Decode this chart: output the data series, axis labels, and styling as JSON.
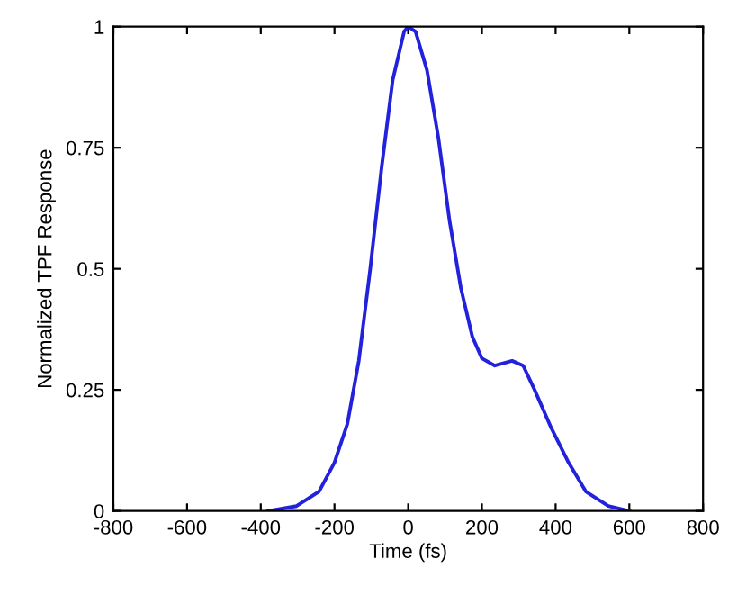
{
  "chart_data": {
    "type": "line",
    "xlabel": "Time (fs)",
    "ylabel": "Normalized TPF Response",
    "xlim": [
      -800,
      800
    ],
    "ylim": [
      0,
      1
    ],
    "xticks": [
      -800,
      -600,
      -400,
      -200,
      0,
      200,
      400,
      600,
      800
    ],
    "yticks": [
      0,
      0.25,
      0.5,
      0.75,
      1
    ],
    "grid": false,
    "legend": false,
    "marker": "none",
    "line_style": "solid",
    "series": [
      {
        "color": "#2222dd",
        "x": [
          -380,
          -303,
          -242,
          -200,
          -165,
          -134,
          -103,
          -72,
          -42,
          -11,
          0,
          20,
          51,
          82,
          112,
          143,
          174,
          200,
          235,
          282,
          312,
          343,
          389,
          435,
          482,
          543,
          600
        ],
        "values": [
          0,
          0.01,
          0.04,
          0.1,
          0.18,
          0.31,
          0.5,
          0.71,
          0.89,
          0.99,
          1,
          0.99,
          0.91,
          0.77,
          0.6,
          0.46,
          0.36,
          0.315,
          0.3,
          0.31,
          0.3,
          0.25,
          0.17,
          0.1,
          0.04,
          0.01,
          0
        ]
      }
    ]
  }
}
